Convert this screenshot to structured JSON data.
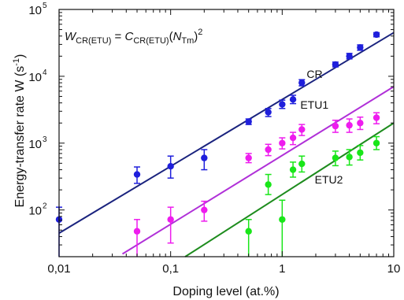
{
  "chart_data": {
    "type": "scatter",
    "xlabel": "Doping level (at.%)",
    "ylabel": {
      "pre": "Energy-transfer rate ",
      "italic": "W",
      "post": " (s",
      "exp": "-1",
      "close": ")"
    },
    "xscale": "log",
    "yscale": "log",
    "xlim": [
      0.01,
      10
    ],
    "ylim": [
      20,
      100000
    ],
    "x_ticks": [
      {
        "value": 0.01,
        "label": "0,01"
      },
      {
        "value": 0.1,
        "label": "0,1"
      },
      {
        "value": 1,
        "label": "1"
      },
      {
        "value": 10,
        "label": "10"
      }
    ],
    "y_ticks": [
      {
        "value": 100,
        "base": "10",
        "exp": "2"
      },
      {
        "value": 1000,
        "base": "10",
        "exp": "3"
      },
      {
        "value": 10000,
        "base": "10",
        "exp": "4"
      },
      {
        "value": 100000,
        "base": "10",
        "exp": "5"
      }
    ],
    "formula": {
      "w": "W",
      "w_sub": "CR(ETU)",
      "eq": " = ",
      "c": "C",
      "c_sub": "CR(ETU)",
      "open": "(",
      "n": "N",
      "n_sub": "Tm",
      "close": ")",
      "exp": "2"
    },
    "series": [
      {
        "name": "CR",
        "color": "#1f1fdc",
        "fit_color": "#1a237e",
        "fit": [
          [
            0.01,
            45
          ],
          [
            10,
            45000
          ]
        ],
        "points": [
          {
            "x": 0.01,
            "y": 72,
            "ylo": 20,
            "yhi": 110
          },
          {
            "x": 0.05,
            "y": 340,
            "ylo": 250,
            "yhi": 440
          },
          {
            "x": 0.1,
            "y": 450,
            "ylo": 300,
            "yhi": 640
          },
          {
            "x": 0.2,
            "y": 600,
            "ylo": 400,
            "yhi": 800
          },
          {
            "x": 0.5,
            "y": 2100,
            "ylo": 1900,
            "yhi": 2300
          },
          {
            "x": 0.75,
            "y": 2900,
            "ylo": 2500,
            "yhi": 3300
          },
          {
            "x": 1.0,
            "y": 3800,
            "ylo": 3300,
            "yhi": 4400
          },
          {
            "x": 1.25,
            "y": 4500,
            "ylo": 3900,
            "yhi": 5200
          },
          {
            "x": 1.5,
            "y": 8000,
            "ylo": 7200,
            "yhi": 8900
          },
          {
            "x": 3.0,
            "y": 15000,
            "ylo": 13800,
            "yhi": 16300
          },
          {
            "x": 4.0,
            "y": 20000,
            "ylo": 18200,
            "yhi": 22000
          },
          {
            "x": 5.0,
            "y": 27000,
            "ylo": 24500,
            "yhi": 29500
          },
          {
            "x": 7.0,
            "y": 42000,
            "ylo": 39000,
            "yhi": 45000
          }
        ]
      },
      {
        "name": "ETU1",
        "color": "#ee1cee",
        "fit_color": "#b030d8",
        "fit": [
          [
            0.037,
            22
          ],
          [
            10,
            7000
          ]
        ],
        "points": [
          {
            "x": 0.05,
            "y": 48,
            "ylo": 20,
            "yhi": 72
          },
          {
            "x": 0.1,
            "y": 72,
            "ylo": 32,
            "yhi": 110
          },
          {
            "x": 0.2,
            "y": 100,
            "ylo": 68,
            "yhi": 135
          },
          {
            "x": 0.5,
            "y": 600,
            "ylo": 510,
            "yhi": 700
          },
          {
            "x": 0.75,
            "y": 800,
            "ylo": 650,
            "yhi": 960
          },
          {
            "x": 1.0,
            "y": 1000,
            "ylo": 820,
            "yhi": 1200
          },
          {
            "x": 1.25,
            "y": 1200,
            "ylo": 950,
            "yhi": 1450
          },
          {
            "x": 1.5,
            "y": 1600,
            "ylo": 1300,
            "yhi": 1900
          },
          {
            "x": 3.0,
            "y": 1800,
            "ylo": 1450,
            "yhi": 2200
          },
          {
            "x": 4.0,
            "y": 1850,
            "ylo": 1450,
            "yhi": 2300
          },
          {
            "x": 5.0,
            "y": 2000,
            "ylo": 1600,
            "yhi": 2450
          },
          {
            "x": 7.0,
            "y": 2400,
            "ylo": 1950,
            "yhi": 2850
          }
        ]
      },
      {
        "name": "ETU2",
        "color": "#19e619",
        "fit_color": "#1e8c1e",
        "fit": [
          [
            0.135,
            20
          ],
          [
            10,
            2000
          ]
        ],
        "points": [
          {
            "x": 0.5,
            "y": 48,
            "ylo": 20,
            "yhi": 72
          },
          {
            "x": 0.75,
            "y": 240,
            "ylo": 170,
            "yhi": 340
          },
          {
            "x": 1.0,
            "y": 72,
            "ylo": 20,
            "yhi": 140
          },
          {
            "x": 1.25,
            "y": 400,
            "ylo": 310,
            "yhi": 520
          },
          {
            "x": 1.5,
            "y": 490,
            "ylo": 370,
            "yhi": 640
          },
          {
            "x": 3.0,
            "y": 600,
            "ylo": 460,
            "yhi": 760
          },
          {
            "x": 4.0,
            "y": 620,
            "ylo": 470,
            "yhi": 800
          },
          {
            "x": 5.0,
            "y": 720,
            "ylo": 560,
            "yhi": 920
          },
          {
            "x": 7.0,
            "y": 1000,
            "ylo": 800,
            "yhi": 1250
          }
        ]
      }
    ],
    "annotations": [
      {
        "series": "CR",
        "text": "CR",
        "x": 2.3,
        "y": 9500
      },
      {
        "series": "ETU1",
        "text": "ETU1",
        "x": 2.6,
        "y": 3300
      },
      {
        "series": "ETU2",
        "text": "ETU2",
        "x": 3.5,
        "y": 250
      }
    ]
  }
}
